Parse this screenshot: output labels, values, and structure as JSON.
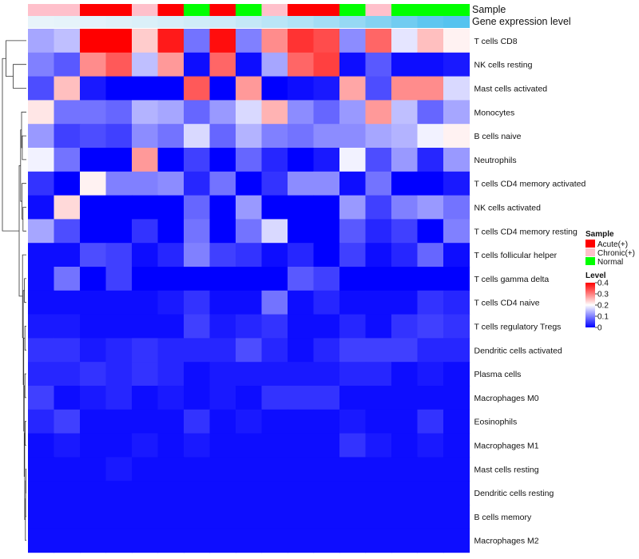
{
  "chart_data": {
    "type": "heatmap",
    "title": "",
    "annotations": {
      "sample_label": "Sample",
      "expression_label": "Gene expression level",
      "samples": [
        "Chronic(+)",
        "Chronic(+)",
        "Acute(+)",
        "Acute(+)",
        "Chronic(+)",
        "Acute(+)",
        "Normal",
        "Acute(+)",
        "Normal",
        "Chronic(+)",
        "Acute(+)",
        "Acute(+)",
        "Normal",
        "Chronic(+)",
        "Normal",
        "Normal",
        "Normal"
      ],
      "expression_levels": [
        0.05,
        0.06,
        0.08,
        0.1,
        0.12,
        0.15,
        0.18,
        0.2,
        0.25,
        0.3,
        0.35,
        0.42,
        0.5,
        0.6,
        0.7,
        0.8,
        0.85
      ]
    },
    "rows": [
      "T cells CD8",
      "NK cells resting",
      "Mast cells activated",
      "Monocytes",
      "B cells naive",
      "Neutrophils",
      "T cells CD4 memory activated",
      "NK cells activated",
      "T cells CD4 memory resting",
      "T cells follicular helper",
      "T cells gamma delta",
      "T cells CD4 naive",
      "T cells regulatory  Tregs",
      "Dendritic cells activated",
      "Plasma cells",
      "Macrophages M0",
      "Eosinophils",
      "Macrophages M1",
      "Mast cells resting",
      "Dendritic cells resting",
      "B cells memory",
      "Macrophages M2"
    ],
    "values": [
      [
        0.13,
        0.15,
        0.4,
        0.4,
        0.24,
        0.38,
        0.09,
        0.39,
        0.1,
        0.29,
        0.36,
        0.34,
        0.11,
        0.32,
        0.18,
        0.25,
        0.21
      ],
      [
        0.1,
        0.07,
        0.29,
        0.33,
        0.15,
        0.28,
        0.01,
        0.32,
        0.01,
        0.13,
        0.32,
        0.35,
        0.01,
        0.07,
        0.01,
        0.01,
        0.02
      ],
      [
        0.06,
        0.25,
        0.02,
        0.0,
        0.0,
        0.0,
        0.33,
        0.0,
        0.28,
        0.0,
        0.01,
        0.02,
        0.27,
        0.06,
        0.29,
        0.29,
        0.17
      ],
      [
        0.22,
        0.09,
        0.09,
        0.08,
        0.14,
        0.13,
        0.08,
        0.12,
        0.17,
        0.26,
        0.11,
        0.08,
        0.12,
        0.28,
        0.15,
        0.08,
        0.13
      ],
      [
        0.12,
        0.05,
        0.06,
        0.05,
        0.11,
        0.09,
        0.17,
        0.08,
        0.14,
        0.1,
        0.09,
        0.11,
        0.11,
        0.13,
        0.14,
        0.19,
        0.21
      ],
      [
        0.19,
        0.09,
        0.0,
        0.0,
        0.28,
        0.0,
        0.05,
        0.0,
        0.08,
        0.03,
        0.0,
        0.02,
        0.19,
        0.06,
        0.12,
        0.03,
        0.12
      ],
      [
        0.04,
        0.0,
        0.21,
        0.1,
        0.1,
        0.11,
        0.03,
        0.09,
        0.0,
        0.04,
        0.11,
        0.11,
        0.01,
        0.09,
        0.0,
        0.0,
        0.02
      ],
      [
        0.01,
        0.23,
        0.0,
        0.0,
        0.0,
        0.0,
        0.08,
        0.0,
        0.12,
        0.0,
        0.0,
        0.0,
        0.12,
        0.05,
        0.1,
        0.12,
        0.09
      ],
      [
        0.13,
        0.06,
        0.0,
        0.0,
        0.04,
        0.0,
        0.09,
        0.0,
        0.09,
        0.17,
        0.0,
        0.0,
        0.07,
        0.03,
        0.05,
        0.0,
        0.1
      ],
      [
        0.01,
        0.01,
        0.06,
        0.05,
        0.01,
        0.03,
        0.1,
        0.05,
        0.04,
        0.01,
        0.03,
        0.0,
        0.05,
        0.01,
        0.03,
        0.08,
        0.01
      ],
      [
        0.01,
        0.09,
        0.0,
        0.05,
        0.0,
        0.0,
        0.0,
        0.0,
        0.0,
        0.0,
        0.07,
        0.05,
        0.0,
        0.0,
        0.0,
        0.0,
        0.0
      ],
      [
        0.01,
        0.01,
        0.01,
        0.01,
        0.01,
        0.02,
        0.04,
        0.01,
        0.01,
        0.09,
        0.01,
        0.03,
        0.01,
        0.01,
        0.01,
        0.04,
        0.03
      ],
      [
        0.02,
        0.02,
        0.01,
        0.01,
        0.01,
        0.01,
        0.05,
        0.02,
        0.03,
        0.04,
        0.01,
        0.01,
        0.03,
        0.01,
        0.04,
        0.05,
        0.04
      ],
      [
        0.04,
        0.04,
        0.02,
        0.03,
        0.04,
        0.03,
        0.03,
        0.03,
        0.06,
        0.03,
        0.01,
        0.03,
        0.05,
        0.05,
        0.05,
        0.03,
        0.03
      ],
      [
        0.03,
        0.03,
        0.04,
        0.03,
        0.04,
        0.03,
        0.01,
        0.02,
        0.02,
        0.02,
        0.02,
        0.02,
        0.03,
        0.03,
        0.01,
        0.02,
        0.01
      ],
      [
        0.05,
        0.01,
        0.02,
        0.03,
        0.01,
        0.02,
        0.01,
        0.02,
        0.01,
        0.04,
        0.04,
        0.04,
        0.01,
        0.01,
        0.01,
        0.01,
        0.01
      ],
      [
        0.03,
        0.05,
        0.01,
        0.01,
        0.01,
        0.01,
        0.04,
        0.01,
        0.02,
        0.01,
        0.01,
        0.01,
        0.02,
        0.01,
        0.01,
        0.04,
        0.01
      ],
      [
        0.01,
        0.02,
        0.01,
        0.01,
        0.02,
        0.01,
        0.02,
        0.01,
        0.01,
        0.01,
        0.01,
        0.01,
        0.04,
        0.02,
        0.01,
        0.02,
        0.01
      ],
      [
        0.01,
        0.01,
        0.01,
        0.02,
        0.01,
        0.01,
        0.01,
        0.01,
        0.01,
        0.01,
        0.01,
        0.01,
        0.01,
        0.01,
        0.01,
        0.01,
        0.01
      ],
      [
        0.01,
        0.01,
        0.01,
        0.01,
        0.01,
        0.01,
        0.01,
        0.01,
        0.01,
        0.01,
        0.01,
        0.01,
        0.01,
        0.01,
        0.01,
        0.01,
        0.01
      ],
      [
        0.01,
        0.01,
        0.01,
        0.01,
        0.01,
        0.01,
        0.01,
        0.01,
        0.01,
        0.01,
        0.01,
        0.01,
        0.01,
        0.01,
        0.01,
        0.01,
        0.01
      ],
      [
        0.01,
        0.01,
        0.01,
        0.01,
        0.01,
        0.01,
        0.01,
        0.01,
        0.01,
        0.01,
        0.01,
        0.01,
        0.01,
        0.01,
        0.01,
        0.01,
        0.01
      ]
    ],
    "color_scale": {
      "min": 0,
      "mid": 0.2,
      "max": 0.4,
      "low_color": "#0000ff",
      "mid_color": "#ffffff",
      "high_color": "#ff0000"
    },
    "legend": {
      "sample_title": "Sample",
      "sample_items": [
        {
          "label": "Acute(+)",
          "color": "#ff0000"
        },
        {
          "label": "Chronic(+)",
          "color": "#ffc0cb"
        },
        {
          "label": "Normal",
          "color": "#00ff00"
        }
      ],
      "level_title": "Level",
      "level_ticks": [
        "0.4",
        "0.3",
        "0.2",
        "0.1",
        "0"
      ],
      "level_tick_values": [
        0.4,
        0.3,
        0.2,
        0.1,
        0
      ],
      "placement": "right"
    },
    "expression_bar_colors": {
      "low": "#e8f4fa",
      "high": "#56c3ef"
    },
    "dendrogram": "left, rows clustered"
  }
}
